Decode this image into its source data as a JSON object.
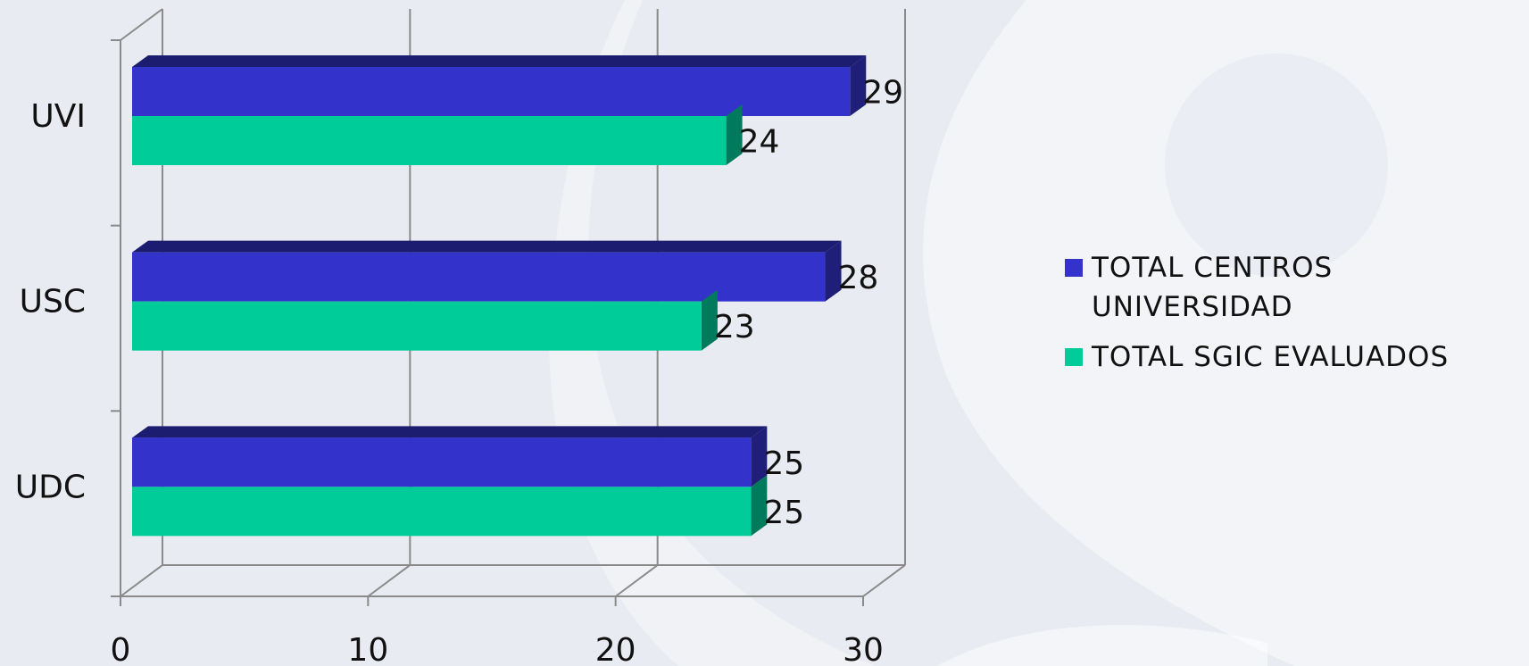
{
  "chart_data": {
    "type": "bar",
    "orientation": "horizontal",
    "style": "3d",
    "categories": [
      "UDC",
      "USC",
      "UVI"
    ],
    "series": [
      {
        "name": "TOTAL CENTROS UNIVERSIDAD",
        "values": [
          25,
          28,
          29
        ],
        "color": "#3333cc"
      },
      {
        "name": "TOTAL SGIC EVALUADOS",
        "values": [
          25,
          23,
          24
        ],
        "color": "#00cc99"
      }
    ],
    "x_ticks": [
      "0",
      "10",
      "20",
      "30"
    ],
    "xlim": [
      0,
      30
    ],
    "grid": true,
    "legend_position": "right",
    "data_labels": true
  }
}
